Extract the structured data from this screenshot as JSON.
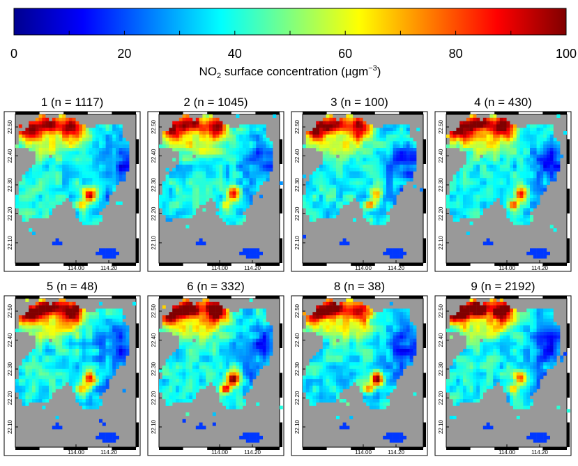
{
  "chart_data": {
    "type": "heatmap",
    "colorbar": {
      "title": "NO2 surface concentration (µgm⁻³)",
      "title_main": "NO",
      "title_sub": "2",
      "title_rest": " surface concentration (µgm",
      "title_sup": "−3",
      "title_end": ")",
      "range": [
        0,
        100
      ],
      "ticks": [
        "0",
        "20",
        "40",
        "60",
        "80",
        "100"
      ],
      "tick_values": [
        0,
        20,
        40,
        60,
        80,
        100
      ],
      "colormap": "jet"
    },
    "panels": [
      {
        "title": "1 (n = 1117)",
        "id": 1,
        "n": 1117
      },
      {
        "title": "2 (n = 1045)",
        "id": 2,
        "n": 1045
      },
      {
        "title": "3 (n = 100)",
        "id": 3,
        "n": 100
      },
      {
        "title": "4 (n = 430)",
        "id": 4,
        "n": 430
      },
      {
        "title": "5 (n = 48)",
        "id": 5,
        "n": 48
      },
      {
        "title": "6 (n = 332)",
        "id": 6,
        "n": 332
      },
      {
        "title": "8 (n = 38)",
        "id": 8,
        "n": 38
      },
      {
        "title": "9 (n = 2192)",
        "id": 9,
        "n": 2192
      }
    ],
    "x_ticks": [
      "114.00",
      "114.20"
    ],
    "y_ticks": [
      "22.50",
      "22.40",
      "22.30",
      "22.20",
      "22.10"
    ],
    "no_data_color": "#999999"
  }
}
